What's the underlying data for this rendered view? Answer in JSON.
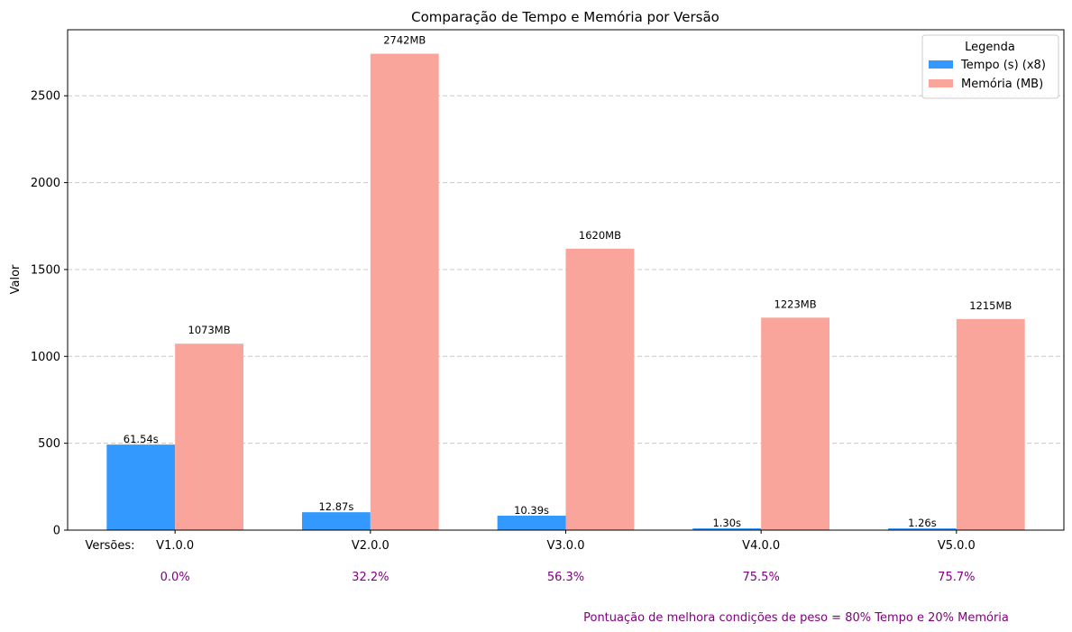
{
  "chart_data": {
    "type": "bar",
    "title": "Comparação de Tempo e Memória por Versão",
    "xlabel": "",
    "ylabel": "Valor",
    "ylim": [
      0,
      2880
    ],
    "yticks": [
      0,
      500,
      1000,
      1500,
      2000,
      2500
    ],
    "grid": "y",
    "categories": [
      "V1.0.0",
      "V2.0.0",
      "V3.0.0",
      "V4.0.0",
      "V5.0.0"
    ],
    "categories_prefix": "Versões:",
    "series": [
      {
        "name": "Tempo (s) (x8)",
        "color": "#3399ff",
        "values": [
          492.32,
          102.96,
          83.12,
          10.4,
          10.08
        ],
        "labels": [
          "61.54s",
          "12.87s",
          "10.39s",
          "1.30s",
          "1.26s"
        ]
      },
      {
        "name": "Memória (MB)",
        "color": "#f9a59b",
        "values": [
          1073,
          2742,
          1620,
          1223,
          1215
        ],
        "labels": [
          "1073MB",
          "2742MB",
          "1620MB",
          "1223MB",
          "1215MB"
        ]
      }
    ],
    "legend": {
      "title": "Legenda",
      "position": "top-right"
    },
    "improvement": {
      "color": "#800080",
      "values": [
        "0.0%",
        "32.2%",
        "56.3%",
        "75.5%",
        "75.7%"
      ],
      "note": "Pontuação de melhora condições de peso = 80% Tempo e 20% Memória"
    }
  }
}
